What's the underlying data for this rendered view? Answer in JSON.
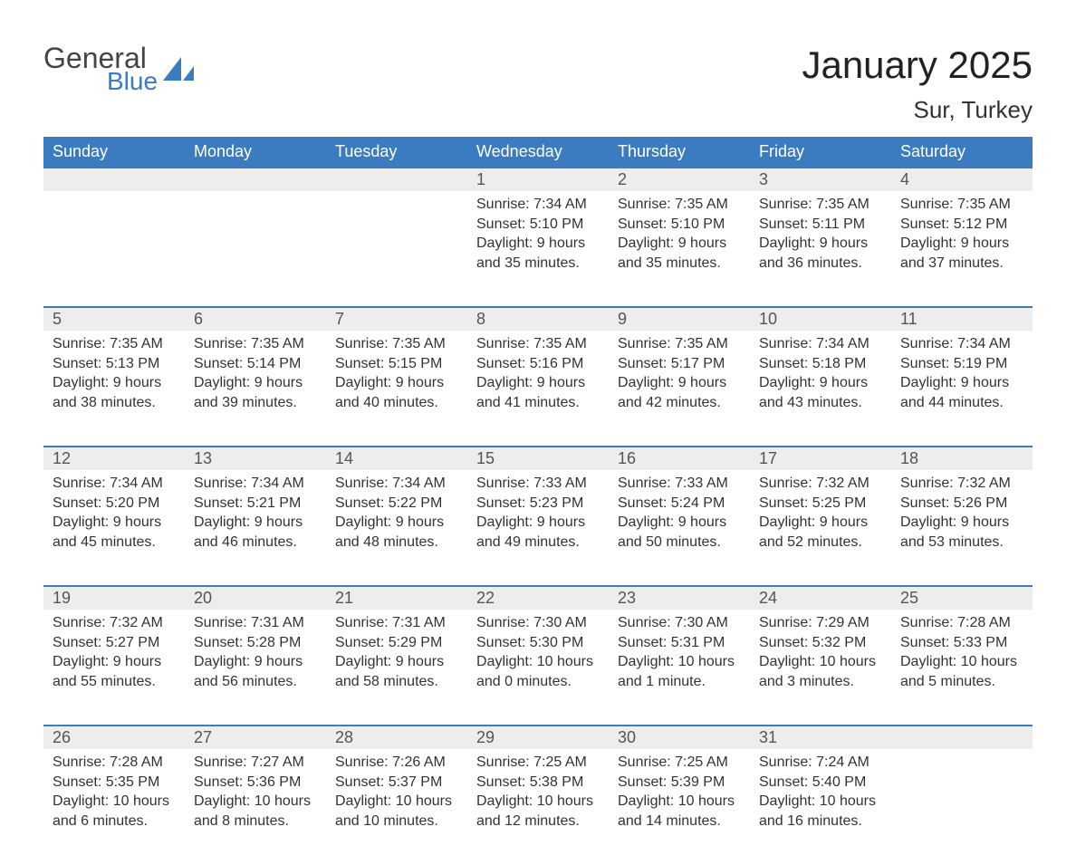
{
  "logo": {
    "word1": "General",
    "word2": "Blue",
    "shape_color": "#3b7bbf",
    "text_color_dark": "#444444"
  },
  "title": "January 2025",
  "location": "Sur, Turkey",
  "colors": {
    "header_bg": "#3b7bbf",
    "header_text": "#ffffff",
    "daynum_bg": "#ededed",
    "daynum_border": "#3b7bbf",
    "body_text": "#333333",
    "page_bg": "#ffffff"
  },
  "typography": {
    "title_fontsize": 42,
    "location_fontsize": 26,
    "weekday_fontsize": 18,
    "daynum_fontsize": 18,
    "body_fontsize": 16
  },
  "weekdays": [
    "Sunday",
    "Monday",
    "Tuesday",
    "Wednesday",
    "Thursday",
    "Friday",
    "Saturday"
  ],
  "weeks": [
    [
      null,
      null,
      null,
      {
        "n": "1",
        "sunrise": "Sunrise: 7:34 AM",
        "sunset": "Sunset: 5:10 PM",
        "dl1": "Daylight: 9 hours",
        "dl2": "and 35 minutes."
      },
      {
        "n": "2",
        "sunrise": "Sunrise: 7:35 AM",
        "sunset": "Sunset: 5:10 PM",
        "dl1": "Daylight: 9 hours",
        "dl2": "and 35 minutes."
      },
      {
        "n": "3",
        "sunrise": "Sunrise: 7:35 AM",
        "sunset": "Sunset: 5:11 PM",
        "dl1": "Daylight: 9 hours",
        "dl2": "and 36 minutes."
      },
      {
        "n": "4",
        "sunrise": "Sunrise: 7:35 AM",
        "sunset": "Sunset: 5:12 PM",
        "dl1": "Daylight: 9 hours",
        "dl2": "and 37 minutes."
      }
    ],
    [
      {
        "n": "5",
        "sunrise": "Sunrise: 7:35 AM",
        "sunset": "Sunset: 5:13 PM",
        "dl1": "Daylight: 9 hours",
        "dl2": "and 38 minutes."
      },
      {
        "n": "6",
        "sunrise": "Sunrise: 7:35 AM",
        "sunset": "Sunset: 5:14 PM",
        "dl1": "Daylight: 9 hours",
        "dl2": "and 39 minutes."
      },
      {
        "n": "7",
        "sunrise": "Sunrise: 7:35 AM",
        "sunset": "Sunset: 5:15 PM",
        "dl1": "Daylight: 9 hours",
        "dl2": "and 40 minutes."
      },
      {
        "n": "8",
        "sunrise": "Sunrise: 7:35 AM",
        "sunset": "Sunset: 5:16 PM",
        "dl1": "Daylight: 9 hours",
        "dl2": "and 41 minutes."
      },
      {
        "n": "9",
        "sunrise": "Sunrise: 7:35 AM",
        "sunset": "Sunset: 5:17 PM",
        "dl1": "Daylight: 9 hours",
        "dl2": "and 42 minutes."
      },
      {
        "n": "10",
        "sunrise": "Sunrise: 7:34 AM",
        "sunset": "Sunset: 5:18 PM",
        "dl1": "Daylight: 9 hours",
        "dl2": "and 43 minutes."
      },
      {
        "n": "11",
        "sunrise": "Sunrise: 7:34 AM",
        "sunset": "Sunset: 5:19 PM",
        "dl1": "Daylight: 9 hours",
        "dl2": "and 44 minutes."
      }
    ],
    [
      {
        "n": "12",
        "sunrise": "Sunrise: 7:34 AM",
        "sunset": "Sunset: 5:20 PM",
        "dl1": "Daylight: 9 hours",
        "dl2": "and 45 minutes."
      },
      {
        "n": "13",
        "sunrise": "Sunrise: 7:34 AM",
        "sunset": "Sunset: 5:21 PM",
        "dl1": "Daylight: 9 hours",
        "dl2": "and 46 minutes."
      },
      {
        "n": "14",
        "sunrise": "Sunrise: 7:34 AM",
        "sunset": "Sunset: 5:22 PM",
        "dl1": "Daylight: 9 hours",
        "dl2": "and 48 minutes."
      },
      {
        "n": "15",
        "sunrise": "Sunrise: 7:33 AM",
        "sunset": "Sunset: 5:23 PM",
        "dl1": "Daylight: 9 hours",
        "dl2": "and 49 minutes."
      },
      {
        "n": "16",
        "sunrise": "Sunrise: 7:33 AM",
        "sunset": "Sunset: 5:24 PM",
        "dl1": "Daylight: 9 hours",
        "dl2": "and 50 minutes."
      },
      {
        "n": "17",
        "sunrise": "Sunrise: 7:32 AM",
        "sunset": "Sunset: 5:25 PM",
        "dl1": "Daylight: 9 hours",
        "dl2": "and 52 minutes."
      },
      {
        "n": "18",
        "sunrise": "Sunrise: 7:32 AM",
        "sunset": "Sunset: 5:26 PM",
        "dl1": "Daylight: 9 hours",
        "dl2": "and 53 minutes."
      }
    ],
    [
      {
        "n": "19",
        "sunrise": "Sunrise: 7:32 AM",
        "sunset": "Sunset: 5:27 PM",
        "dl1": "Daylight: 9 hours",
        "dl2": "and 55 minutes."
      },
      {
        "n": "20",
        "sunrise": "Sunrise: 7:31 AM",
        "sunset": "Sunset: 5:28 PM",
        "dl1": "Daylight: 9 hours",
        "dl2": "and 56 minutes."
      },
      {
        "n": "21",
        "sunrise": "Sunrise: 7:31 AM",
        "sunset": "Sunset: 5:29 PM",
        "dl1": "Daylight: 9 hours",
        "dl2": "and 58 minutes."
      },
      {
        "n": "22",
        "sunrise": "Sunrise: 7:30 AM",
        "sunset": "Sunset: 5:30 PM",
        "dl1": "Daylight: 10 hours",
        "dl2": "and 0 minutes."
      },
      {
        "n": "23",
        "sunrise": "Sunrise: 7:30 AM",
        "sunset": "Sunset: 5:31 PM",
        "dl1": "Daylight: 10 hours",
        "dl2": "and 1 minute."
      },
      {
        "n": "24",
        "sunrise": "Sunrise: 7:29 AM",
        "sunset": "Sunset: 5:32 PM",
        "dl1": "Daylight: 10 hours",
        "dl2": "and 3 minutes."
      },
      {
        "n": "25",
        "sunrise": "Sunrise: 7:28 AM",
        "sunset": "Sunset: 5:33 PM",
        "dl1": "Daylight: 10 hours",
        "dl2": "and 5 minutes."
      }
    ],
    [
      {
        "n": "26",
        "sunrise": "Sunrise: 7:28 AM",
        "sunset": "Sunset: 5:35 PM",
        "dl1": "Daylight: 10 hours",
        "dl2": "and 6 minutes."
      },
      {
        "n": "27",
        "sunrise": "Sunrise: 7:27 AM",
        "sunset": "Sunset: 5:36 PM",
        "dl1": "Daylight: 10 hours",
        "dl2": "and 8 minutes."
      },
      {
        "n": "28",
        "sunrise": "Sunrise: 7:26 AM",
        "sunset": "Sunset: 5:37 PM",
        "dl1": "Daylight: 10 hours",
        "dl2": "and 10 minutes."
      },
      {
        "n": "29",
        "sunrise": "Sunrise: 7:25 AM",
        "sunset": "Sunset: 5:38 PM",
        "dl1": "Daylight: 10 hours",
        "dl2": "and 12 minutes."
      },
      {
        "n": "30",
        "sunrise": "Sunrise: 7:25 AM",
        "sunset": "Sunset: 5:39 PM",
        "dl1": "Daylight: 10 hours",
        "dl2": "and 14 minutes."
      },
      {
        "n": "31",
        "sunrise": "Sunrise: 7:24 AM",
        "sunset": "Sunset: 5:40 PM",
        "dl1": "Daylight: 10 hours",
        "dl2": "and 16 minutes."
      },
      null
    ]
  ]
}
